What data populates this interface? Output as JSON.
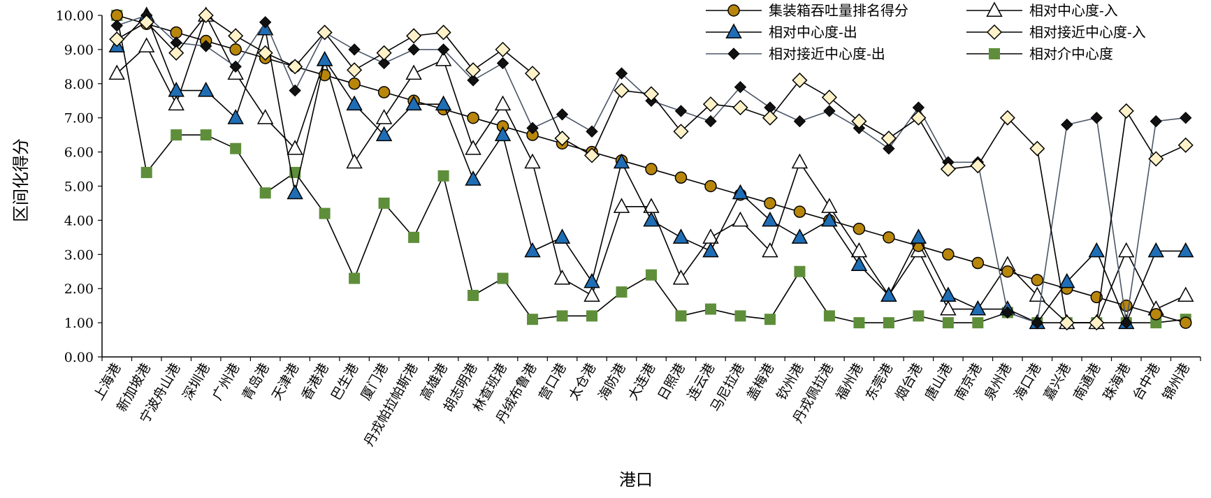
{
  "chart_data": {
    "type": "line",
    "xlabel": "港口",
    "ylabel": "区间化得分",
    "ylim": [
      0,
      10
    ],
    "yticks": [
      "0.00",
      "1.00",
      "2.00",
      "3.00",
      "4.00",
      "5.00",
      "6.00",
      "7.00",
      "8.00",
      "9.00",
      "10.00"
    ],
    "grid": false,
    "legend_position": "top-right",
    "categories": [
      "上海港",
      "新加坡港",
      "宁波舟山港",
      "深圳港",
      "广州港",
      "青岛港",
      "天津港",
      "香港港",
      "巴生港",
      "厦门港",
      "丹戎帕拉帕斯港",
      "高雄港",
      "胡志明港",
      "林查班港",
      "丹绒布鲁港",
      "营口港",
      "太仓港",
      "海防港",
      "大连港",
      "日照港",
      "连云港",
      "马尼拉港",
      "盖梅港",
      "钦州港",
      "丹戎佩拉港",
      "福州港",
      "东莞港",
      "烟台港",
      "唐山港",
      "南京港",
      "泉州港",
      "海口港",
      "嘉兴港",
      "南通港",
      "珠海港",
      "台中港",
      "锦州港"
    ],
    "series": [
      {
        "name": "集装箱吞吐量排名得分",
        "marker": "circle",
        "color": "#B8860B",
        "values": [
          10.0,
          9.75,
          9.5,
          9.25,
          9.0,
          8.75,
          8.5,
          8.25,
          8.0,
          7.75,
          7.5,
          7.25,
          7.0,
          6.75,
          6.5,
          6.25,
          6.0,
          5.75,
          5.5,
          5.25,
          5.0,
          4.75,
          4.5,
          4.25,
          4.0,
          3.75,
          3.5,
          3.25,
          3.0,
          2.75,
          2.5,
          2.25,
          2.0,
          1.75,
          1.5,
          1.25,
          1.0
        ]
      },
      {
        "name": "相对中心度-入",
        "marker": "triangle-open",
        "color": "#000000",
        "values": [
          8.3,
          9.1,
          7.4,
          10.0,
          8.3,
          7.0,
          6.1,
          8.7,
          5.7,
          7.0,
          8.3,
          8.7,
          6.1,
          7.4,
          5.7,
          2.3,
          1.8,
          4.4,
          4.4,
          2.3,
          3.5,
          4.0,
          3.1,
          5.7,
          4.4,
          3.1,
          1.8,
          3.1,
          1.4,
          1.4,
          2.7,
          1.8,
          1.0,
          1.0,
          3.1,
          1.4,
          1.8
        ]
      },
      {
        "name": "相对中心度-出",
        "marker": "triangle",
        "color": "#1F6EB5",
        "values": [
          9.1,
          10.0,
          7.8,
          7.8,
          7.0,
          9.6,
          4.8,
          8.7,
          7.4,
          6.5,
          7.4,
          7.4,
          5.2,
          6.5,
          3.1,
          3.5,
          2.2,
          5.7,
          4.0,
          3.5,
          3.1,
          4.8,
          4.0,
          3.5,
          4.0,
          2.7,
          1.8,
          3.5,
          1.8,
          1.4,
          1.4,
          1.0,
          2.2,
          3.1,
          1.0,
          3.1,
          3.1
        ]
      },
      {
        "name": "相对接近中心度-入",
        "marker": "diamond-open",
        "color": "#FFF2C8",
        "values": [
          9.3,
          9.8,
          8.9,
          10.0,
          9.4,
          8.9,
          8.5,
          9.5,
          8.4,
          8.9,
          9.4,
          9.5,
          8.4,
          9.0,
          8.3,
          6.4,
          5.9,
          7.8,
          7.7,
          6.6,
          7.4,
          7.3,
          7.0,
          8.1,
          7.6,
          6.9,
          6.4,
          7.0,
          5.5,
          5.6,
          7.0,
          6.1,
          1.0,
          1.0,
          7.2,
          5.8,
          6.2
        ]
      },
      {
        "name": "相对接近中心度-出",
        "marker": "diamond",
        "color": "#111111",
        "line_color": "#4A5668",
        "values": [
          9.7,
          10.0,
          9.2,
          9.1,
          8.5,
          9.8,
          7.8,
          9.5,
          9.0,
          8.6,
          9.0,
          9.0,
          8.1,
          8.6,
          6.7,
          7.1,
          6.6,
          8.3,
          7.5,
          7.2,
          6.9,
          7.9,
          7.3,
          6.9,
          7.2,
          6.7,
          6.1,
          7.3,
          5.7,
          5.7,
          1.3,
          1.0,
          6.8,
          7.0,
          1.0,
          6.9,
          7.0
        ]
      },
      {
        "name": "相对介中心度",
        "marker": "square",
        "color": "#5E8E3A",
        "values": [
          10.0,
          5.4,
          6.5,
          6.5,
          6.1,
          4.8,
          5.4,
          4.2,
          2.3,
          4.5,
          3.5,
          5.3,
          1.8,
          2.3,
          1.1,
          1.2,
          1.2,
          1.9,
          2.4,
          1.2,
          1.4,
          1.2,
          1.1,
          2.5,
          1.2,
          1.0,
          1.0,
          1.2,
          1.0,
          1.0,
          1.3,
          1.0,
          1.0,
          1.0,
          1.0,
          1.0,
          1.1
        ]
      }
    ]
  }
}
